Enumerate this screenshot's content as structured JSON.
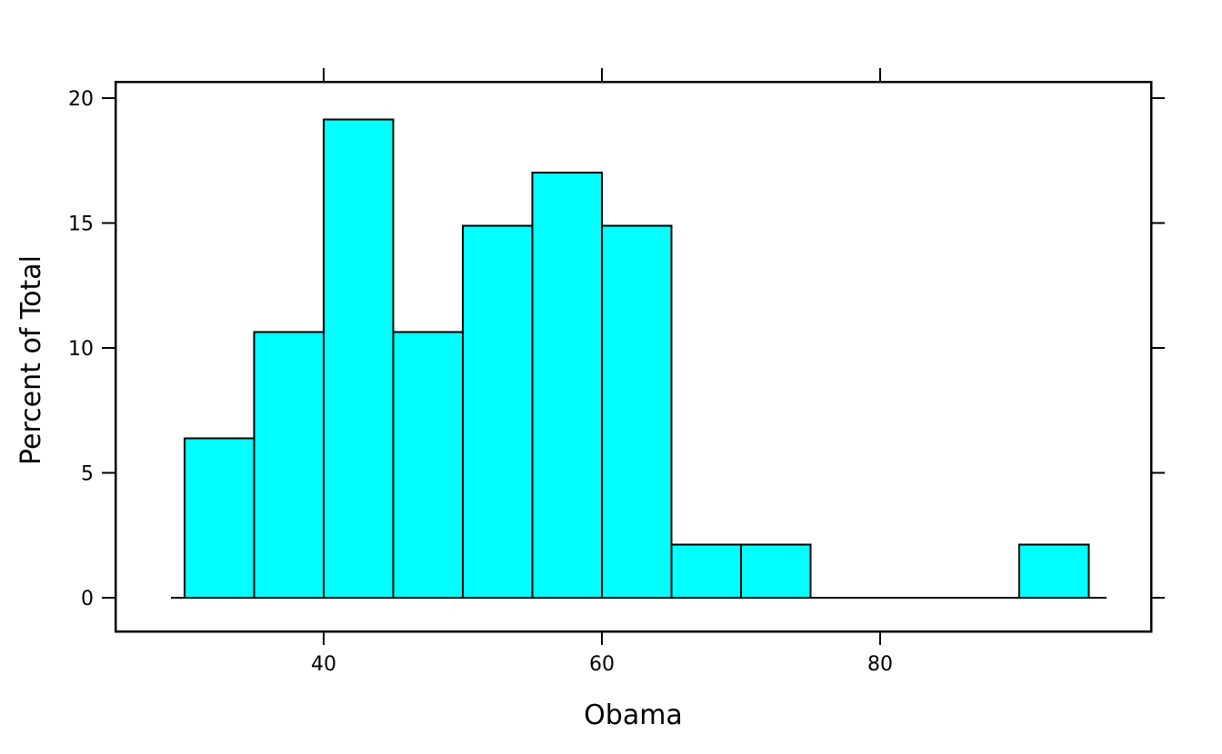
{
  "chart_data": {
    "type": "bar",
    "subtype": "histogram",
    "title": "",
    "xlabel": "Obama",
    "ylabel": "Percent of Total",
    "bin_width": 5,
    "bins": [
      {
        "from": 30,
        "to": 35,
        "percent": 6.38
      },
      {
        "from": 35,
        "to": 40,
        "percent": 10.64
      },
      {
        "from": 40,
        "to": 45,
        "percent": 19.15
      },
      {
        "from": 45,
        "to": 50,
        "percent": 10.64
      },
      {
        "from": 50,
        "to": 55,
        "percent": 14.89
      },
      {
        "from": 55,
        "to": 60,
        "percent": 17.02
      },
      {
        "from": 60,
        "to": 65,
        "percent": 14.89
      },
      {
        "from": 65,
        "to": 70,
        "percent": 2.13
      },
      {
        "from": 70,
        "to": 75,
        "percent": 2.13
      },
      {
        "from": 75,
        "to": 80,
        "percent": 0
      },
      {
        "from": 80,
        "to": 85,
        "percent": 0
      },
      {
        "from": 85,
        "to": 90,
        "percent": 0
      },
      {
        "from": 90,
        "to": 95,
        "percent": 2.13
      }
    ],
    "x_ticks": [
      40,
      60,
      80
    ],
    "y_ticks": [
      0,
      5,
      10,
      15,
      20
    ],
    "xlim": [
      25,
      99.5
    ],
    "ylim": [
      -1.35,
      20.65
    ],
    "grid": false,
    "legend": "none",
    "ticks_mirrored": true
  },
  "colors": {
    "bar_fill": "#00FFFF",
    "stroke": "#000000",
    "background": "#FFFFFF"
  }
}
